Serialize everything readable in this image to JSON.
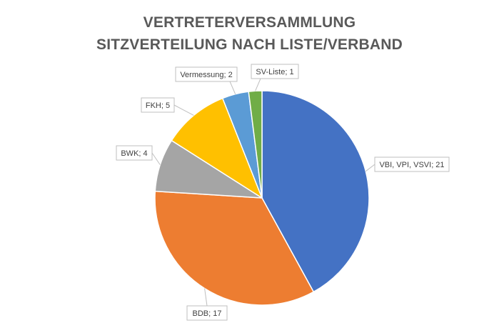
{
  "chart_data": {
    "type": "pie",
    "title_lines": [
      "VERTRETERVERSAMMLUNG",
      "SITZVERTEILUNG NACH LISTE/VERBAND"
    ],
    "categories": [
      "VBI, VPI, VSVI",
      "BDB",
      "BWK",
      "FKH",
      "Vermessung",
      "SV-Liste"
    ],
    "values": [
      21,
      17,
      4,
      5,
      2,
      1
    ],
    "data_labels": [
      "VBI, VPI, VSVI; 21",
      "BDB; 17",
      "BWK; 4",
      "FKH; 5",
      "Vermessung; 2",
      "SV-Liste; 1"
    ],
    "colors": [
      "#4472C4",
      "#ED7D31",
      "#A5A5A5",
      "#FFC000",
      "#5B9BD5",
      "#70AD47"
    ],
    "start_angle": "12 o'clock",
    "direction": "clockwise",
    "legend": "none"
  }
}
